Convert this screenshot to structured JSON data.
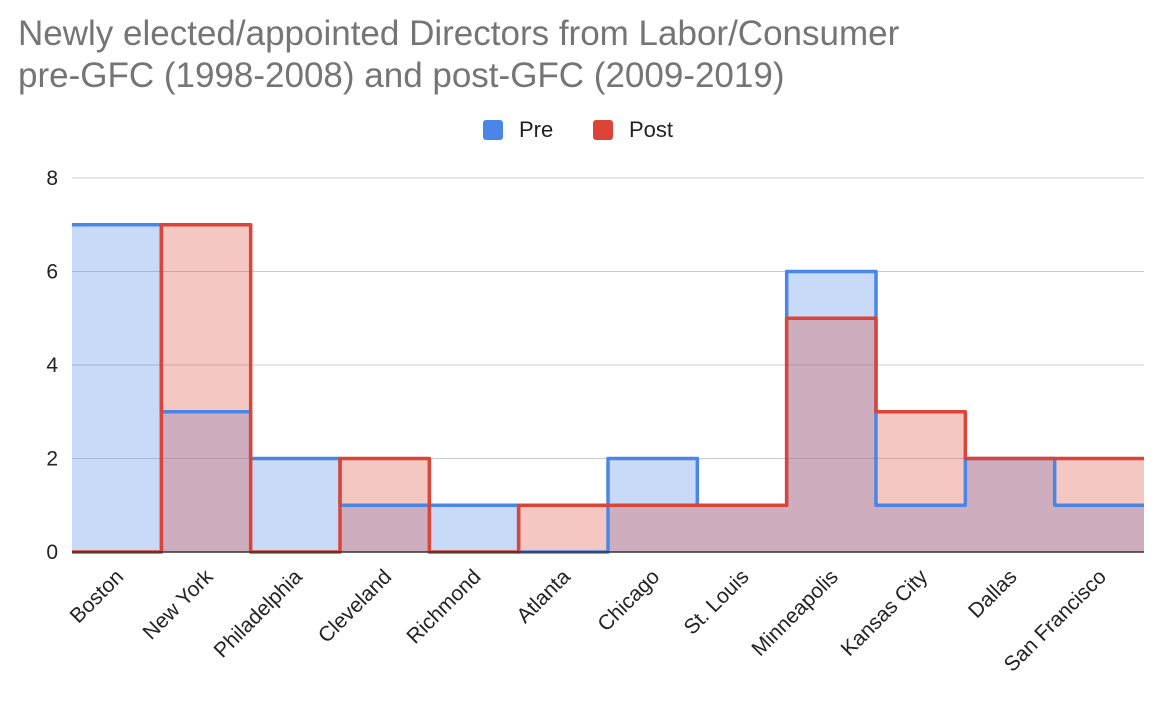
{
  "title_lines": [
    "Newly elected/appointed Directors from Labor/Consumer",
    "pre-GFC (1998-2008) and post-GFC (2009-2019)"
  ],
  "colors": {
    "pre": "#4a86e8",
    "post": "#db4437",
    "grid": "#cccccc",
    "axis": "#333333"
  },
  "chart_data": {
    "type": "area",
    "style": "stepped",
    "title": "Newly elected/appointed Directors from Labor/Consumer pre-GFC (1998-2008) and post-GFC (2009-2019)",
    "categories": [
      "Boston",
      "New York",
      "Philadelphia",
      "Cleveland",
      "Richmond",
      "Atlanta",
      "Chicago",
      "St. Louis",
      "Minneapolis",
      "Kansas City",
      "Dallas",
      "San Francisco"
    ],
    "series": [
      {
        "name": "Pre",
        "values": [
          7,
          3,
          2,
          1,
          1,
          0,
          2,
          1,
          6,
          1,
          2,
          1
        ]
      },
      {
        "name": "Post",
        "values": [
          0,
          7,
          0,
          2,
          0,
          1,
          1,
          1,
          5,
          3,
          2,
          2
        ]
      }
    ],
    "ylim": [
      0,
      8
    ],
    "yticks": [
      0,
      2,
      4,
      6,
      8
    ],
    "xlabel": "",
    "ylabel": "",
    "grid": true,
    "legend": "top"
  }
}
